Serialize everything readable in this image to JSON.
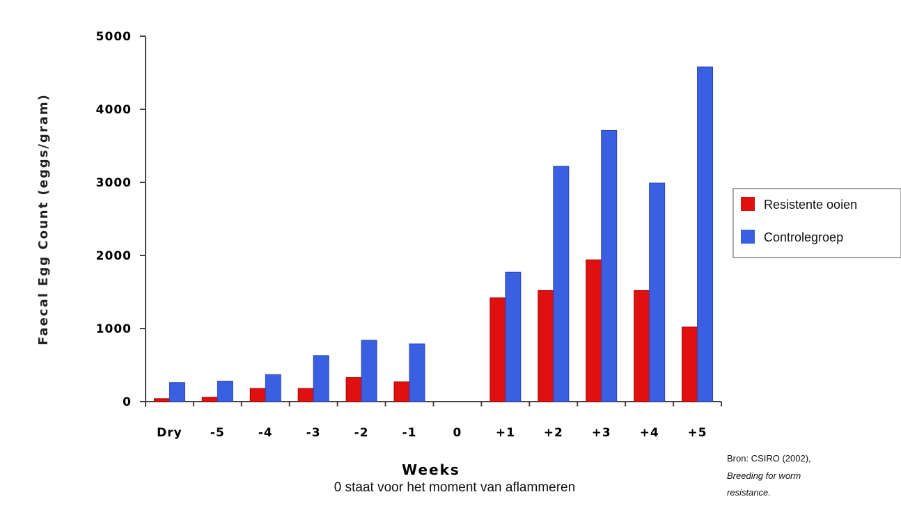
{
  "chart_data": {
    "type": "bar",
    "title": "",
    "xlabel": "Weeks",
    "xnote": "0 staat voor het moment van aflammeren",
    "ylabel": "Faecal Egg Count (eggs/gram)",
    "ylim": [
      0,
      5000
    ],
    "yticks": [
      "0",
      "1000",
      "2000",
      "3000",
      "4000",
      "5000"
    ],
    "categories": [
      "Dry",
      "-5",
      "-4",
      "-3",
      "-2",
      "-1",
      "0",
      "+1",
      "+2",
      "+3",
      "+4",
      "+5"
    ],
    "series": [
      {
        "name": "Resistente ooien",
        "color": "#e01010",
        "values": [
          40,
          60,
          180,
          180,
          330,
          270,
          0,
          1420,
          1520,
          1940,
          1520,
          1020
        ]
      },
      {
        "name": "Controlegroep",
        "color": "#3a5fe0",
        "values": [
          260,
          280,
          370,
          630,
          840,
          790,
          0,
          1770,
          3220,
          3710,
          2990,
          4580
        ]
      }
    ],
    "grid": false,
    "legend_position": "right"
  },
  "source": {
    "line1": "Bron: CSIRO (2002),",
    "line2": "Breeding for worm",
    "line3": "resistance."
  }
}
